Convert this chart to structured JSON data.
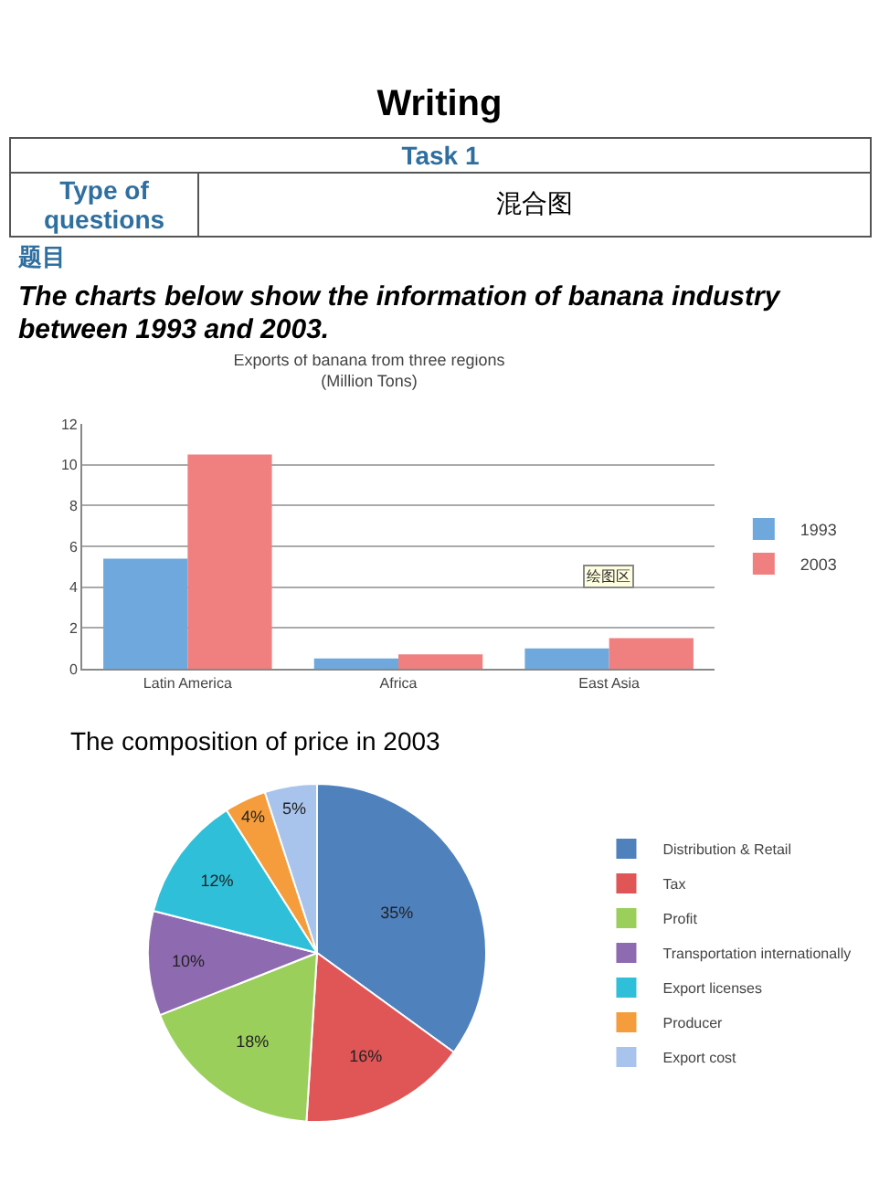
{
  "chart_data": [
    {
      "type": "bar",
      "title": "Exports of banana from three regions\n(Million Tons)",
      "categories": [
        "Latin America",
        "Africa",
        "East Asia"
      ],
      "series": [
        {
          "name": "1993",
          "color": "#6fa8dc",
          "values": [
            5.4,
            0.5,
            1.0
          ]
        },
        {
          "name": "2003",
          "color": "#f08080",
          "values": [
            10.5,
            0.7,
            1.5
          ]
        }
      ],
      "ylim": [
        0,
        12
      ],
      "yticks": [
        0,
        2,
        4,
        6,
        8,
        10,
        12
      ],
      "grid": "y",
      "legend": "right",
      "annotations": [
        "Writing",
        "Task 1",
        "Type of questions",
        "混合图",
        "题目",
        "The charts below show the information of banana industry between 1993 and 2003.",
        {
          "text": "绘图区",
          "x": "East Asia",
          "y": 4.5
        }
      ]
    },
    {
      "type": "pie",
      "title": "The composition of price in 2003",
      "categories": [
        "Distribution & Retail",
        "Tax",
        "Profit",
        "Transportation internationally",
        "Export licenses",
        "Producer",
        "Export cost"
      ],
      "values": [
        35,
        16,
        18,
        10,
        12,
        4,
        5
      ],
      "value_labels": [
        "35%",
        "16%",
        "18%",
        "10%",
        "12%",
        "4%",
        "5%"
      ],
      "colors": [
        "#4f81bd",
        "#e05555",
        "#9bcf5c",
        "#8e6bb0",
        "#2fbfd8",
        "#f59d3d",
        "#a9c4ec"
      ],
      "legend": "right"
    }
  ]
}
